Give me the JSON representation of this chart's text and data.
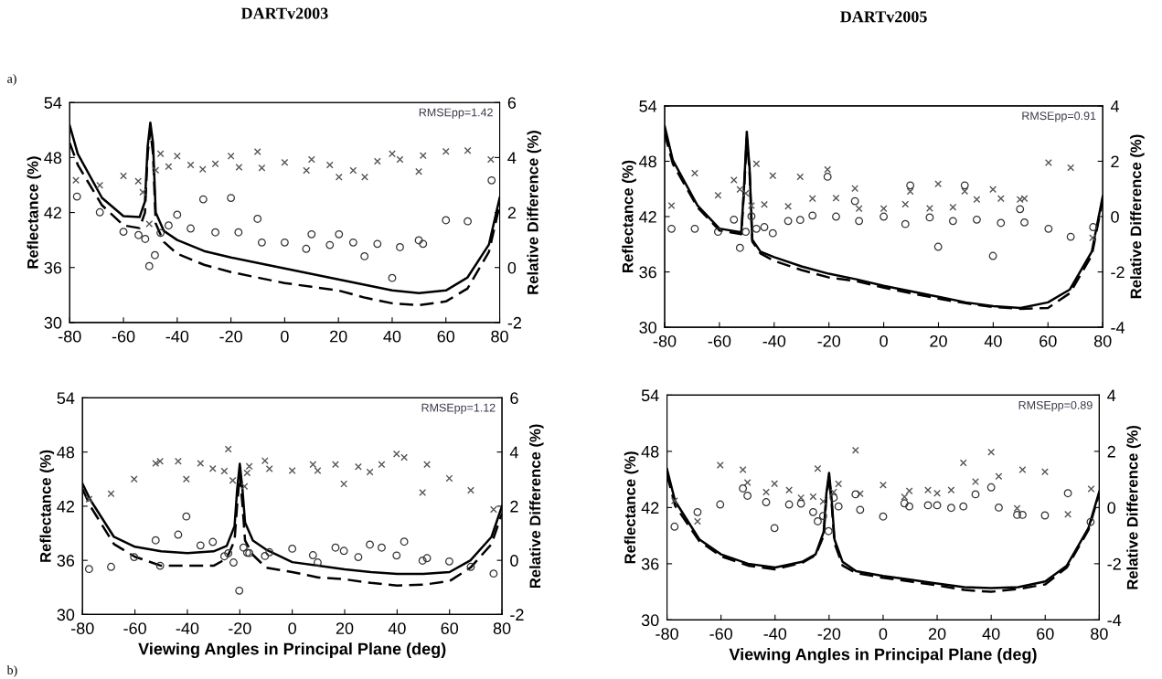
{
  "chart_data": [
    {
      "type": "line",
      "title": "DARTv2003",
      "ylabel": "Reflectance (%)",
      "y2label": "Relative Difference (%)",
      "xlim": [
        -80,
        80
      ],
      "xticks": [
        -80,
        -60,
        -40,
        -20,
        0,
        20,
        40,
        60,
        80
      ],
      "ylim": [
        30,
        54
      ],
      "yticks": [
        30,
        36,
        42,
        48,
        54
      ],
      "y2lim": [
        -2,
        6
      ],
      "y2ticks": [
        -2,
        0,
        2,
        4,
        6
      ],
      "annotations": [
        "RMSEpp=1.42",
        "a)"
      ],
      "series": [
        {
          "color": "#000000",
          "line_style": "solid",
          "x": [
            -80,
            -77,
            -68,
            -60,
            -54,
            -52,
            -51,
            -50,
            -49,
            -48,
            -45,
            -40,
            -30,
            -20,
            -10,
            0,
            10,
            20,
            30,
            40,
            50,
            60,
            68,
            76,
            80
          ],
          "values": [
            51.5,
            48.4,
            43.6,
            41.6,
            41.5,
            43.2,
            49.2,
            51.8,
            49.6,
            42.0,
            40.0,
            39.0,
            37.8,
            37.1,
            36.5,
            35.9,
            35.3,
            34.7,
            34.1,
            33.5,
            33.2,
            33.5,
            34.9,
            38.5,
            43.6
          ]
        },
        {
          "color": "#000000",
          "line_style": "dashed",
          "x": [
            -80,
            -77,
            -68,
            -60,
            -54,
            -52,
            -51,
            -50,
            -49,
            -48,
            -45,
            -40,
            -30,
            -20,
            -10,
            0,
            10,
            20,
            30,
            40,
            50,
            60,
            68,
            76,
            80
          ],
          "values": [
            49.6,
            47.2,
            42.8,
            40.6,
            40.3,
            42.0,
            48.4,
            51.0,
            48.4,
            40.8,
            38.8,
            37.5,
            36.3,
            35.5,
            34.9,
            34.3,
            33.9,
            33.5,
            32.7,
            32.1,
            31.9,
            32.3,
            33.7,
            37.7,
            42.8
          ]
        },
        {
          "type": "scatter",
          "axis": "y2",
          "marker": "cross",
          "color": "#555555",
          "x": [
            -77.7,
            -68.8,
            -60,
            -54.5,
            -52.8,
            -50.4,
            -48,
            -46.2,
            -43.2,
            -40,
            -35,
            -30.5,
            -25.8,
            -20,
            -17,
            -10.1,
            -8.5,
            0,
            8.1,
            10,
            16.8,
            20.2,
            25.5,
            29.8,
            34.5,
            40,
            42.9,
            49.9,
            51.5,
            60,
            68.1,
            76.7
          ],
          "values": [
            3.17,
            2.99,
            3.33,
            3.14,
            2.74,
            1.59,
            3.54,
            4.14,
            3.67,
            4.05,
            3.73,
            3.57,
            3.77,
            4.05,
            3.65,
            4.21,
            3.62,
            3.82,
            3.53,
            3.93,
            3.73,
            3.29,
            3.53,
            3.29,
            3.86,
            4.14,
            3.93,
            3.49,
            4.07,
            4.22,
            4.25,
            3.93
          ]
        },
        {
          "type": "scatter",
          "axis": "y2",
          "marker": "circle",
          "color": "#333333",
          "x": [
            -77.3,
            -68.8,
            -60,
            -54.4,
            -51.9,
            -50.4,
            -48.3,
            -46.2,
            -43.2,
            -40,
            -35,
            -30.3,
            -25.8,
            -20,
            -17.2,
            -10.1,
            -8.5,
            0,
            8,
            10,
            16.8,
            20.2,
            25.5,
            29.7,
            34.5,
            40,
            42.9,
            49.9,
            51.5,
            60,
            68.1,
            77
          ],
          "values": [
            2.58,
            2.01,
            1.3,
            1.18,
            1.04,
            0.05,
            0.45,
            1.26,
            1.53,
            1.92,
            1.42,
            2.48,
            1.28,
            2.53,
            1.28,
            1.77,
            0.91,
            0.91,
            0.68,
            1.21,
            0.82,
            1.21,
            0.91,
            0.41,
            0.86,
            -0.38,
            0.74,
            0.99,
            0.86,
            1.72,
            1.68,
            3.17
          ]
        }
      ]
    },
    {
      "type": "line",
      "title": "DARTv2005",
      "ylabel": "Reflectance (%)",
      "y2label": "Relative Difference (%)",
      "xlim": [
        -80,
        80
      ],
      "xticks": [
        -80,
        -60,
        -40,
        -20,
        0,
        20,
        40,
        60,
        80
      ],
      "ylim": [
        30,
        54
      ],
      "yticks": [
        30,
        36,
        42,
        48,
        54
      ],
      "y2lim": [
        -4,
        4
      ],
      "y2ticks": [
        -4,
        -2,
        0,
        2,
        4
      ],
      "annotations": [
        "RMSEpp=0.91"
      ],
      "series": [
        {
          "color": "#000000",
          "line_style": "solid",
          "x": [
            -80,
            -77,
            -68,
            -60,
            -52,
            -51,
            -50,
            -49,
            -48,
            -45,
            -40,
            -30,
            -20,
            -10,
            0,
            10,
            20,
            30,
            40,
            50,
            60,
            68,
            76,
            80
          ],
          "values": [
            51.8,
            48.1,
            43.2,
            40.7,
            40.3,
            45.3,
            51.2,
            47.3,
            39.5,
            38.2,
            37.6,
            36.6,
            35.8,
            35.2,
            34.5,
            33.9,
            33.3,
            32.7,
            32.3,
            32.1,
            32.7,
            34.1,
            38.2,
            44.2
          ]
        },
        {
          "color": "#000000",
          "line_style": "dashed",
          "x": [
            -80,
            -77,
            -68,
            -60,
            -52,
            -51,
            -50,
            -49,
            -48,
            -45,
            -40,
            -30,
            -20,
            -10,
            0,
            10,
            20,
            30,
            40,
            50,
            60,
            68,
            76,
            80
          ],
          "values": [
            51.0,
            47.7,
            43.0,
            40.5,
            40.1,
            44.8,
            50.6,
            46.9,
            39.3,
            38.0,
            37.2,
            36.2,
            35.4,
            35.0,
            34.3,
            33.7,
            33.1,
            32.6,
            32.2,
            32.0,
            32.1,
            33.7,
            37.8,
            43.8
          ]
        },
        {
          "type": "scatter",
          "axis": "y2",
          "marker": "cross",
          "color": "#555555",
          "x": [
            -77.5,
            -69,
            -60.5,
            -54.7,
            -52.5,
            -50.4,
            -48.3,
            -46.5,
            -43.6,
            -40.5,
            -34.9,
            -30.5,
            -26,
            -20.5,
            -17.4,
            -10.5,
            -9,
            0,
            7.9,
            9.7,
            16.8,
            19.9,
            25.3,
            29.6,
            34,
            39.9,
            42.8,
            49.8,
            51.4,
            60.2,
            68.3,
            76.3
          ],
          "values": [
            0.4,
            1.57,
            0.77,
            1.32,
            0.98,
            0.84,
            0.4,
            1.91,
            0.44,
            1.48,
            0.37,
            1.44,
            0.65,
            1.7,
            0.67,
            1.02,
            0.29,
            0.29,
            0.45,
            0.91,
            0.3,
            1.18,
            0.34,
            0.92,
            0.62,
            0.98,
            0.65,
            0.62,
            0.65,
            1.95,
            1.77,
            -0.77
          ]
        },
        {
          "type": "scatter",
          "axis": "y2",
          "marker": "circle",
          "color": "#333333",
          "x": [
            -77.5,
            -69,
            -60.5,
            -54.7,
            -52.5,
            -50.4,
            -48.3,
            -46.5,
            -43.6,
            -40.5,
            -34.9,
            -30.5,
            -26,
            -20.5,
            -17.4,
            -10.5,
            -9,
            0,
            7.9,
            9.7,
            16.8,
            19.9,
            25.3,
            29.6,
            34,
            39.9,
            42.8,
            49.8,
            51.4,
            60.2,
            68.3,
            76.5
          ],
          "values": [
            -0.44,
            -0.44,
            -0.55,
            -0.11,
            -1.13,
            -0.55,
            0.01,
            -0.44,
            -0.38,
            -0.6,
            -0.16,
            -0.12,
            0.04,
            1.44,
            0.0,
            0.56,
            -0.16,
            0.0,
            -0.27,
            1.13,
            -0.03,
            -1.09,
            -0.16,
            1.13,
            -0.11,
            -1.42,
            -0.23,
            0.27,
            -0.21,
            -0.44,
            -0.73,
            -0.38
          ]
        }
      ]
    },
    {
      "type": "line",
      "xlabel": "Viewing Angles in Principal Plane (deg)",
      "ylabel": "Reflectance (%)",
      "y2label": "Relative Difference (%)",
      "xlim": [
        -80,
        80
      ],
      "xticks": [
        -80,
        -60,
        -40,
        -20,
        0,
        20,
        40,
        60,
        80
      ],
      "ylim": [
        30,
        54
      ],
      "yticks": [
        30,
        36,
        42,
        48,
        54
      ],
      "y2lim": [
        -2,
        6
      ],
      "y2ticks": [
        -2,
        0,
        2,
        4,
        6
      ],
      "annotations": [
        "RMSEpp=1.12",
        "b)"
      ],
      "series": [
        {
          "color": "#000000",
          "line_style": "solid",
          "x": [
            -80,
            -77,
            -68,
            -60,
            -50,
            -40,
            -30,
            -25,
            -22,
            -21,
            -20,
            -19,
            -18,
            -15,
            -10,
            0,
            10,
            20,
            30,
            40,
            50,
            60,
            68,
            76,
            80
          ],
          "values": [
            44.5,
            42.7,
            38.6,
            37.5,
            37.0,
            36.8,
            37.0,
            37.6,
            39.8,
            43.9,
            46.7,
            43.9,
            40.2,
            38.2,
            37.2,
            35.8,
            35.4,
            35.0,
            34.7,
            34.5,
            34.5,
            34.7,
            36.0,
            38.6,
            42.0
          ]
        },
        {
          "color": "#000000",
          "line_style": "dashed",
          "x": [
            -80,
            -77,
            -68,
            -60,
            -50,
            -40,
            -30,
            -25,
            -22,
            -21,
            -20,
            -19,
            -18,
            -15,
            -10,
            0,
            10,
            20,
            30,
            40,
            50,
            60,
            68,
            76,
            80
          ],
          "values": [
            43.9,
            42.0,
            37.8,
            36.4,
            35.4,
            35.4,
            35.4,
            36.2,
            38.2,
            42.2,
            45.5,
            42.2,
            38.2,
            36.6,
            35.2,
            34.7,
            34.1,
            33.9,
            33.5,
            33.2,
            33.3,
            33.7,
            35.2,
            37.8,
            41.2
          ]
        },
        {
          "type": "scatter",
          "axis": "y2",
          "marker": "cross",
          "color": "#555555",
          "x": [
            -77.5,
            -69.1,
            -60.3,
            -52.1,
            -50.4,
            -43.5,
            -40.4,
            -35,
            -30.3,
            -25.9,
            -24.4,
            -22.7,
            -18.2,
            -17.2,
            -16.4,
            -10.4,
            -8.7,
            0,
            7.9,
            9.7,
            16.5,
            19.7,
            25.2,
            29.6,
            34.1,
            39.8,
            42.7,
            49.7,
            51.4,
            59.9,
            68.1,
            76.8
          ],
          "values": [
            2.26,
            2.46,
            3.0,
            3.58,
            3.66,
            3.66,
            3.0,
            3.58,
            3.39,
            3.3,
            4.11,
            2.95,
            2.73,
            3.23,
            3.47,
            3.68,
            3.38,
            3.31,
            3.54,
            3.31,
            3.54,
            2.82,
            3.46,
            3.26,
            3.54,
            3.93,
            3.8,
            2.5,
            3.54,
            3.03,
            2.59,
            1.88
          ]
        },
        {
          "type": "scatter",
          "axis": "y2",
          "marker": "circle",
          "color": "#333333",
          "x": [
            -77.5,
            -69.1,
            -60.3,
            -52.1,
            -50.4,
            -43.5,
            -40.4,
            -35,
            -30.3,
            -25.9,
            -24.4,
            -22.4,
            -20.2,
            -18.6,
            -17.2,
            -16.4,
            -10.4,
            -8.7,
            0,
            7.9,
            9.7,
            16.5,
            19.7,
            25.2,
            29.6,
            34.1,
            39.8,
            42.7,
            49.7,
            51.4,
            59.9,
            68.1,
            76.8
          ],
          "values": [
            -0.32,
            -0.24,
            0.12,
            0.74,
            -0.2,
            0.95,
            1.62,
            0.55,
            0.68,
            0.15,
            0.26,
            -0.08,
            -1.12,
            0.47,
            0.28,
            0.27,
            0.16,
            0.3,
            0.43,
            0.19,
            -0.08,
            0.47,
            0.35,
            0.12,
            0.58,
            0.47,
            0.18,
            0.69,
            -0.01,
            0.08,
            -0.04,
            -0.24,
            -0.49
          ]
        }
      ]
    },
    {
      "type": "line",
      "xlabel": "Viewing Angles in Principal Plane (deg)",
      "ylabel": "Reflectance (%)",
      "y2label": "Relative Difference (%)",
      "xlim": [
        -80,
        80
      ],
      "xticks": [
        -80,
        -60,
        -40,
        -20,
        0,
        20,
        40,
        60,
        80
      ],
      "ylim": [
        30,
        54
      ],
      "yticks": [
        30,
        36,
        42,
        48,
        54
      ],
      "y2lim": [
        -4,
        4
      ],
      "y2ticks": [
        -4,
        -2,
        0,
        2,
        4
      ],
      "annotations": [
        "RMSEpp=0.89"
      ],
      "series": [
        {
          "color": "#000000",
          "line_style": "solid",
          "x": [
            -80,
            -77,
            -68,
            -60,
            -50,
            -40,
            -30,
            -25,
            -22,
            -21,
            -20,
            -19,
            -18,
            -15,
            -10,
            0,
            10,
            20,
            30,
            40,
            50,
            60,
            68,
            76,
            80
          ],
          "values": [
            46.1,
            42.7,
            38.6,
            37.0,
            36.0,
            35.6,
            36.2,
            37.0,
            39.4,
            43.5,
            45.7,
            42.7,
            38.6,
            36.2,
            35.2,
            34.7,
            34.3,
            33.9,
            33.5,
            33.4,
            33.5,
            34.1,
            35.8,
            39.8,
            43.7
          ]
        },
        {
          "color": "#000000",
          "line_style": "dashed",
          "x": [
            -80,
            -77,
            -68,
            -60,
            -50,
            -40,
            -30,
            -25,
            -22,
            -21,
            -20,
            -19,
            -18,
            -15,
            -10,
            0,
            10,
            20,
            30,
            40,
            50,
            60,
            68,
            76,
            80
          ],
          "values": [
            45.5,
            42.2,
            38.4,
            36.8,
            35.8,
            35.4,
            36.1,
            36.9,
            39.0,
            43.1,
            45.3,
            42.2,
            38.2,
            35.8,
            35.0,
            34.5,
            34.1,
            33.7,
            33.2,
            33.0,
            33.3,
            33.8,
            35.6,
            39.6,
            43.5
          ]
        },
        {
          "type": "scatter",
          "axis": "y2",
          "marker": "cross",
          "color": "#555555",
          "x": [
            -77.2,
            -68.7,
            -60.3,
            -51.9,
            -50.2,
            -43.3,
            -40.2,
            -34.8,
            -30.4,
            -25.9,
            -24.2,
            -22.2,
            -18.3,
            -16.5,
            -10.2,
            -8.5,
            0,
            7.9,
            9.7,
            16.6,
            20,
            25.2,
            29.7,
            34.2,
            40,
            42.8,
            49.6,
            51.6,
            59.9,
            68.4,
            77
          ],
          "values": [
            0.24,
            -0.49,
            1.51,
            1.35,
            0.89,
            0.55,
            0.85,
            0.62,
            0.35,
            0.39,
            1.39,
            0.22,
            0.55,
            0.84,
            2.04,
            0.49,
            0.8,
            0.38,
            0.59,
            0.62,
            0.51,
            0.62,
            1.59,
            0.92,
            1.97,
            1.11,
            -0.03,
            1.35,
            1.27,
            -0.24,
            0.66
          ]
        },
        {
          "type": "scatter",
          "axis": "y2",
          "marker": "circle",
          "color": "#333333",
          "x": [
            -77.2,
            -68.7,
            -60.3,
            -51.9,
            -50.2,
            -43.3,
            -40.2,
            -34.8,
            -30.4,
            -25.9,
            -24.2,
            -22.2,
            -20.2,
            -18.3,
            -16.5,
            -10.2,
            -8.5,
            0,
            7.9,
            9.7,
            16.6,
            20,
            25.2,
            29.7,
            34.2,
            40,
            42.8,
            49.6,
            51.6,
            59.9,
            68.4,
            76.8
          ],
          "values": [
            -0.68,
            -0.16,
            0.11,
            0.68,
            0.42,
            0.19,
            -0.73,
            0.11,
            0.14,
            -0.16,
            -0.49,
            -0.3,
            -0.84,
            0.35,
            0.04,
            0.47,
            -0.08,
            -0.32,
            0.15,
            0.04,
            0.08,
            0.08,
            -0.01,
            0.04,
            0.47,
            0.72,
            0.0,
            -0.26,
            -0.26,
            -0.28,
            0.51,
            -0.51
          ]
        }
      ]
    }
  ]
}
